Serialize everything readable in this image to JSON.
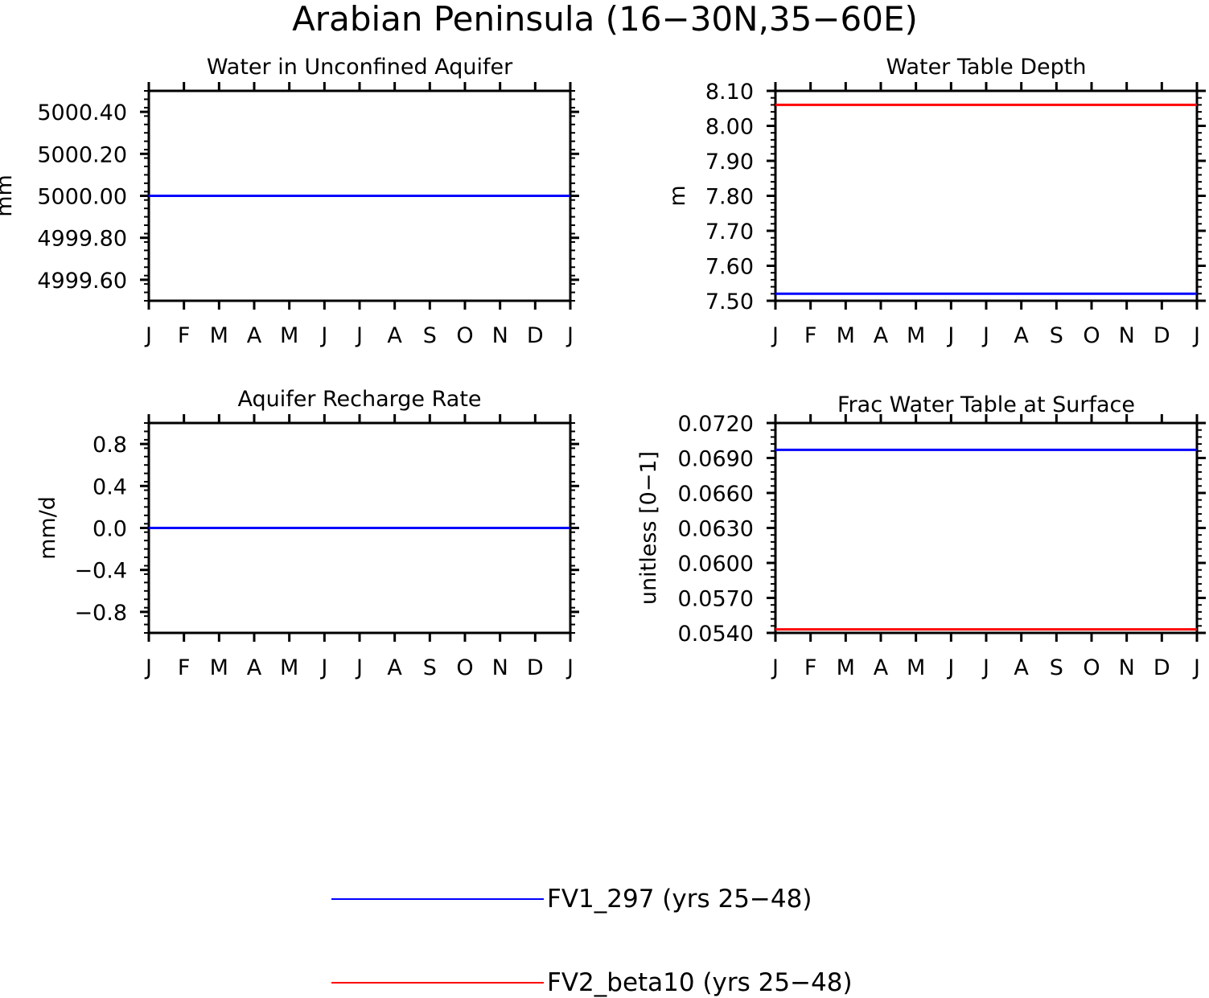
{
  "figure_title": "Arabian Peninsula (16−30N,35−60E)",
  "colors": {
    "series_1": "#0000ff",
    "series_2": "#ff0000",
    "axes": "#000000"
  },
  "legend": [
    {
      "label": "FV1_297 (yrs 25−48)",
      "color": "#0000ff"
    },
    {
      "label": "FV2_beta10 (yrs 25−48)",
      "color": "#ff0000"
    }
  ],
  "chart_data": [
    {
      "type": "line",
      "title": "Water in Unconfined Aquifer",
      "ylabel": "mm",
      "xlabel": "",
      "x": [
        "J",
        "F",
        "M",
        "A",
        "M",
        "J",
        "J",
        "A",
        "S",
        "O",
        "N",
        "D",
        "J"
      ],
      "ylim": [
        4999.5,
        5000.5
      ],
      "yticks": [
        {
          "value": 5000.4,
          "label": "5000.40"
        },
        {
          "value": 5000.2,
          "label": "5000.20"
        },
        {
          "value": 5000.0,
          "label": "5000.00"
        },
        {
          "value": 4999.8,
          "label": "4999.80"
        },
        {
          "value": 4999.6,
          "label": "4999.60"
        }
      ],
      "series": [
        {
          "name": "FV1_297 (yrs 25−48)",
          "color": "#0000ff",
          "values": [
            5000,
            5000,
            5000,
            5000,
            5000,
            5000,
            5000,
            5000,
            5000,
            5000,
            5000,
            5000,
            5000
          ]
        },
        {
          "name": "FV2_beta10 (yrs 25−48)",
          "color": "#ff0000",
          "values": [
            5000,
            5000,
            5000,
            5000,
            5000,
            5000,
            5000,
            5000,
            5000,
            5000,
            5000,
            5000,
            5000
          ]
        }
      ]
    },
    {
      "type": "line",
      "title": "Water Table Depth",
      "ylabel": "m",
      "xlabel": "",
      "x": [
        "J",
        "F",
        "M",
        "A",
        "M",
        "J",
        "J",
        "A",
        "S",
        "O",
        "N",
        "D",
        "J"
      ],
      "ylim": [
        7.5,
        8.1
      ],
      "yticks": [
        {
          "value": 8.1,
          "label": "8.10"
        },
        {
          "value": 8.0,
          "label": "8.00"
        },
        {
          "value": 7.9,
          "label": "7.90"
        },
        {
          "value": 7.8,
          "label": "7.80"
        },
        {
          "value": 7.7,
          "label": "7.70"
        },
        {
          "value": 7.6,
          "label": "7.60"
        },
        {
          "value": 7.5,
          "label": "7.50"
        }
      ],
      "series": [
        {
          "name": "FV1_297 (yrs 25−48)",
          "color": "#0000ff",
          "values": [
            7.52,
            7.52,
            7.52,
            7.52,
            7.52,
            7.52,
            7.52,
            7.52,
            7.52,
            7.52,
            7.52,
            7.52,
            7.52
          ]
        },
        {
          "name": "FV2_beta10 (yrs 25−48)",
          "color": "#ff0000",
          "values": [
            8.06,
            8.06,
            8.06,
            8.06,
            8.06,
            8.06,
            8.06,
            8.06,
            8.06,
            8.06,
            8.06,
            8.06,
            8.06
          ]
        }
      ]
    },
    {
      "type": "line",
      "title": "Aquifer Recharge Rate",
      "ylabel": "mm/d",
      "xlabel": "",
      "x": [
        "J",
        "F",
        "M",
        "A",
        "M",
        "J",
        "J",
        "A",
        "S",
        "O",
        "N",
        "D",
        "J"
      ],
      "ylim": [
        -1.0,
        1.0
      ],
      "yticks": [
        {
          "value": 0.8,
          "label": "0.8"
        },
        {
          "value": 0.4,
          "label": "0.4"
        },
        {
          "value": 0.0,
          "label": "0.0"
        },
        {
          "value": -0.4,
          "label": "−0.4"
        },
        {
          "value": -0.8,
          "label": "−0.8"
        }
      ],
      "series": [
        {
          "name": "FV1_297 (yrs 25−48)",
          "color": "#0000ff",
          "values": [
            0,
            0,
            0,
            0,
            0,
            0,
            0,
            0,
            0,
            0,
            0,
            0,
            0
          ]
        },
        {
          "name": "FV2_beta10 (yrs 25−48)",
          "color": "#ff0000",
          "values": [
            0,
            0,
            0,
            0,
            0,
            0,
            0,
            0,
            0,
            0,
            0,
            0,
            0
          ]
        }
      ]
    },
    {
      "type": "line",
      "title": "Frac Water Table at Surface",
      "ylabel": "unitless [0−1]",
      "xlabel": "",
      "x": [
        "J",
        "F",
        "M",
        "A",
        "M",
        "J",
        "J",
        "A",
        "S",
        "O",
        "N",
        "D",
        "J"
      ],
      "ylim": [
        0.054,
        0.072
      ],
      "yticks": [
        {
          "value": 0.072,
          "label": "0.0720"
        },
        {
          "value": 0.069,
          "label": "0.0690"
        },
        {
          "value": 0.066,
          "label": "0.0660"
        },
        {
          "value": 0.063,
          "label": "0.0630"
        },
        {
          "value": 0.06,
          "label": "0.0600"
        },
        {
          "value": 0.057,
          "label": "0.0570"
        },
        {
          "value": 0.054,
          "label": "0.0540"
        }
      ],
      "series": [
        {
          "name": "FV1_297 (yrs 25−48)",
          "color": "#0000ff",
          "values": [
            0.0697,
            0.0697,
            0.0697,
            0.0697,
            0.0697,
            0.0697,
            0.0697,
            0.0697,
            0.0697,
            0.0697,
            0.0697,
            0.0697,
            0.0697
          ]
        },
        {
          "name": "FV2_beta10 (yrs 25−48)",
          "color": "#ff0000",
          "values": [
            0.0543,
            0.0543,
            0.0543,
            0.0543,
            0.0543,
            0.0543,
            0.0543,
            0.0543,
            0.0543,
            0.0543,
            0.0543,
            0.0543,
            0.0543
          ]
        }
      ]
    }
  ]
}
